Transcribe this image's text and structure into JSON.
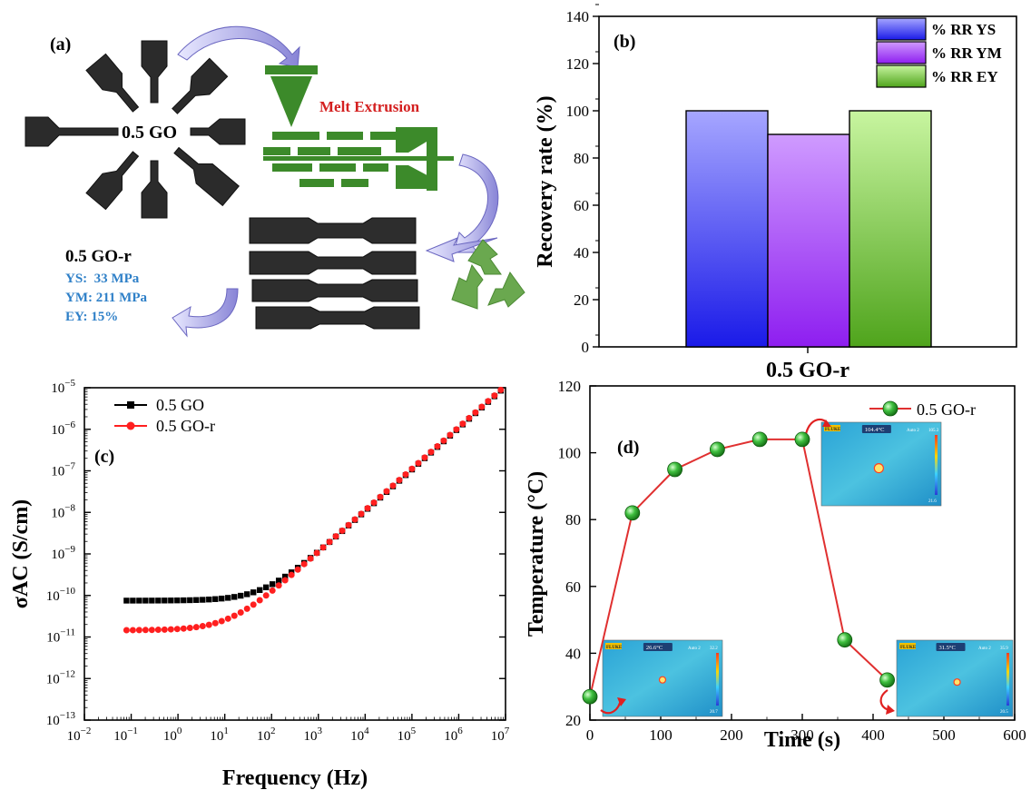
{
  "panel_a": {
    "label": "(a)",
    "center_label": "0.5 GO",
    "process_label": "Melt Extrusion",
    "recycled_title": "0.5 GO-r",
    "props": [
      "YS:  33 MPa",
      "YM: 211 MPa",
      "EY: 15%"
    ],
    "colors": {
      "extruder": "#3c8a2a",
      "process_text": "#d42020",
      "props_text": "#2f80c8",
      "arrow": "#7b78c8",
      "recycle": "#6aa84f"
    }
  },
  "chart_data": [
    {
      "id": "b",
      "type": "bar",
      "panel_label": "(b)",
      "ylabel": "Recovery rate (%)",
      "xlabel": "",
      "categories": [
        "0.5 GO-r"
      ],
      "series": [
        {
          "name": "% RR YS",
          "values": [
            100
          ],
          "color": "#6f6ff0"
        },
        {
          "name": "% RR YM",
          "values": [
            90
          ],
          "color": "#b05af0"
        },
        {
          "name": "% RR EY",
          "values": [
            100
          ],
          "color": "#8fd24c"
        }
      ],
      "ylim": [
        0,
        140
      ],
      "yticks": [
        "0",
        "20",
        "40",
        "60",
        "80",
        "100",
        "120",
        "140"
      ],
      "legend": "top-right"
    },
    {
      "id": "c",
      "type": "scatter",
      "panel_label": "(c)",
      "xlabel": "Frequency (Hz)",
      "ylabel": "σAC (S/cm)",
      "x_scale": "log",
      "y_scale": "log",
      "xlim": [
        0.01,
        10000000
      ],
      "ylim": [
        1e-13,
        1e-05
      ],
      "xticks_base": [
        "10",
        "10",
        "10",
        "10",
        "10",
        "10",
        "10",
        "10",
        "10",
        "10"
      ],
      "xticks_exp": [
        "−2",
        "−1",
        "0",
        "1",
        "2",
        "3",
        "4",
        "5",
        "6",
        "7"
      ],
      "yticks_base": [
        "10",
        "10",
        "10",
        "10",
        "10",
        "10",
        "10",
        "10",
        "10"
      ],
      "yticks_exp": [
        "−13",
        "−12",
        "−11",
        "−10",
        "−9",
        "−8",
        "−7",
        "−6",
        "−5"
      ],
      "legend": "top-left",
      "series": [
        {
          "name": "0.5 GO",
          "color": "#000000",
          "marker": "square",
          "x_log_start": -1.1,
          "x_log_end": 6.9,
          "n": 60,
          "model": "sigma = sigma_dc * (1 + (f / f_c)^s)",
          "sigma_dc": 7.5e-11,
          "f_c": 70,
          "s": 1.0
        },
        {
          "name": "0.5 GO-r",
          "color": "#ff1f1f",
          "marker": "circle",
          "x_log_start": -1.1,
          "x_log_end": 6.9,
          "n": 60,
          "model": "sigma = sigma_dc * (1 + (f / f_c)^s)",
          "sigma_dc": 1.45e-11,
          "f_c": 13,
          "s": 1.0
        }
      ]
    },
    {
      "id": "d",
      "type": "line",
      "panel_label": "(d)",
      "xlabel": "Time (s)",
      "ylabel": "Temperature (°C)",
      "xlim": [
        0,
        600
      ],
      "ylim": [
        20,
        120
      ],
      "xticks": [
        "0",
        "100",
        "200",
        "300",
        "400",
        "500",
        "600"
      ],
      "yticks": [
        "20",
        "40",
        "60",
        "80",
        "100",
        "120"
      ],
      "legend": "top-right",
      "series": [
        {
          "name": "0.5 GO-r",
          "color": "#e03030",
          "marker_color": "#2ea82e",
          "x": [
            0,
            60,
            120,
            180,
            240,
            300,
            360,
            420
          ],
          "y": [
            27,
            82,
            95,
            101,
            104,
            104,
            44,
            32
          ]
        }
      ],
      "insets": [
        {
          "brand": "FLUKE",
          "temp": "26.6°C",
          "mode": "Auto 2",
          "max": "32.2",
          "min": "20.7"
        },
        {
          "brand": "FLUKE",
          "temp": "104.4°C",
          "mode": "Auto 2",
          "max": "105.3",
          "min": "21.6"
        },
        {
          "brand": "FLUKE",
          "temp": "31.5°C",
          "mode": "Auto 2",
          "max": "35.9",
          "min": "20.5"
        }
      ]
    }
  ]
}
